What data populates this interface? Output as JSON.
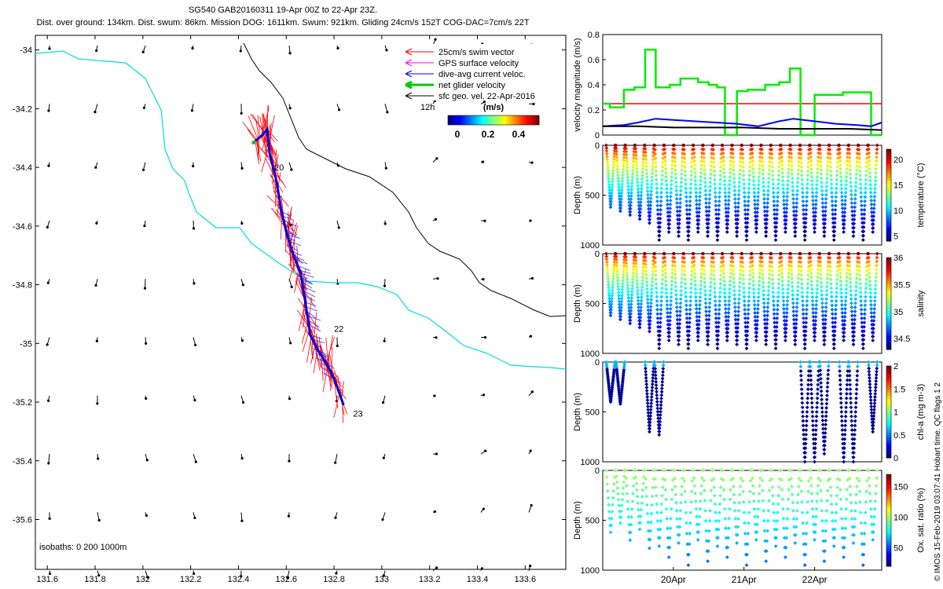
{
  "header": {
    "line1": "SG540 GAB20160311 19-Apr 00Z to 22-Apr 23Z.",
    "line2": "Dist. over ground: 134km. Dist. swum: 86km. Mission DOG: 1611km. Swum: 921km. Gliding 24cm/s 152T COG-DAC=7cm/s 22T"
  },
  "legend": {
    "items": [
      {
        "label": "25cm/s swim vector",
        "color": "#ff0000"
      },
      {
        "label": "GPS surface velocity",
        "color": "#ff00ff"
      },
      {
        "label": "dive-avg current veloc.",
        "color": "#0000ff"
      },
      {
        "label": "net glider velocity",
        "color": "#00cc00"
      },
      {
        "label": "sfc geo. vel. 22-Apr-2016",
        "color": "#000000"
      }
    ],
    "scale_label": "12h",
    "colorbar_unit": "(m/s)",
    "colorbar_ticks": [
      "0",
      "0.2",
      "0.4"
    ]
  },
  "isobaths_label": "isobaths: 0   200  1000m",
  "credit": "© IMOS 15-Feb-2019 03:07:41 Hobart time. QC flags 1  2",
  "chart_data": [
    {
      "type": "map",
      "x_ticks": [
        "131.6",
        "131.8",
        "132",
        "132.2",
        "132.4",
        "132.6",
        "132.8",
        "133",
        "133.2",
        "133.4",
        "133.6"
      ],
      "y_ticks": [
        "-34",
        "-34.2",
        "-34.4",
        "-34.6",
        "-34.8",
        "-35",
        "-35.2",
        "-35.4",
        "-35.6"
      ],
      "xlim": [
        131.55,
        133.77
      ],
      "ylim": [
        -35.77,
        -33.95
      ],
      "track_labels": [
        {
          "text": "20",
          "lon": 132.55,
          "lat": -34.41
        },
        {
          "text": "22",
          "lon": 132.8,
          "lat": -34.96
        },
        {
          "text": "23",
          "lon": 132.88,
          "lat": -35.25
        }
      ],
      "track": [
        [
          132.47,
          -34.31
        ],
        [
          132.5,
          -34.29
        ],
        [
          132.52,
          -34.27
        ],
        [
          132.53,
          -34.35
        ],
        [
          132.56,
          -34.45
        ],
        [
          132.58,
          -34.55
        ],
        [
          132.6,
          -34.62
        ],
        [
          132.63,
          -34.7
        ],
        [
          132.66,
          -34.76
        ],
        [
          132.68,
          -34.86
        ],
        [
          132.7,
          -34.97
        ],
        [
          132.73,
          -35.02
        ],
        [
          132.77,
          -35.07
        ],
        [
          132.8,
          -35.12
        ],
        [
          132.84,
          -35.21
        ]
      ]
    },
    {
      "type": "line",
      "ylabel": "velocity magnitude (m/s)",
      "ylim": [
        0,
        0.8
      ],
      "y_ticks": [
        "0",
        "0.2",
        "0.4",
        "0.6",
        "0.8"
      ],
      "red_level": 0.25,
      "series": [
        {
          "color": "#00ee00",
          "x": [
            19.0,
            19.1,
            19.1,
            19.3,
            19.3,
            19.45,
            19.45,
            19.6,
            19.6,
            19.75,
            19.75,
            19.95,
            19.95,
            20.1,
            20.1,
            20.35,
            20.35,
            20.5,
            20.5,
            20.62,
            20.62,
            20.73,
            20.73,
            20.9,
            20.9,
            21.05,
            21.05,
            21.3,
            21.3,
            21.5,
            21.5,
            21.65,
            21.65,
            21.8,
            21.8,
            22.0,
            22.0,
            22.4,
            22.4,
            22.8,
            22.8,
            22.95
          ],
          "y": [
            0.25,
            0.25,
            0.22,
            0.22,
            0.36,
            0.36,
            0.38,
            0.38,
            0.68,
            0.68,
            0.38,
            0.38,
            0.4,
            0.4,
            0.45,
            0.45,
            0.42,
            0.42,
            0.4,
            0.4,
            0.38,
            0.38,
            0.0,
            0.0,
            0.35,
            0.35,
            0.36,
            0.36,
            0.4,
            0.4,
            0.42,
            0.42,
            0.53,
            0.53,
            0.0,
            0.0,
            0.32,
            0.32,
            0.34,
            0.34,
            0.0,
            0.0
          ]
        },
        {
          "color": "#0000ff",
          "x": [
            19.0,
            19.3,
            19.5,
            19.75,
            20.0,
            20.3,
            20.6,
            20.9,
            21.2,
            21.5,
            21.7,
            22.0,
            22.3,
            22.6,
            22.8,
            22.95
          ],
          "y": [
            0.07,
            0.08,
            0.1,
            0.13,
            0.12,
            0.11,
            0.1,
            0.09,
            0.07,
            0.11,
            0.13,
            0.11,
            0.09,
            0.08,
            0.07,
            0.1
          ]
        },
        {
          "color": "#000000",
          "x": [
            19.0,
            19.5,
            20.0,
            20.5,
            21.0,
            21.5,
            22.0,
            22.5,
            22.95
          ],
          "y": [
            0.07,
            0.07,
            0.06,
            0.06,
            0.06,
            0.05,
            0.05,
            0.05,
            0.04
          ]
        }
      ]
    },
    {
      "type": "scatter",
      "ylabel": "Depth (m)",
      "clabel": "temperature (°C)",
      "cticks": [
        "5",
        "10",
        "15",
        "20"
      ],
      "clim": [
        4,
        22
      ],
      "dmax": 1000,
      "y_ticks": [
        "0",
        "500",
        "1000"
      ],
      "variant": "t"
    },
    {
      "type": "scatter",
      "ylabel": "Depth (m)",
      "clabel": "salinity",
      "cticks": [
        "34.5",
        "35",
        "35.5",
        "36"
      ],
      "clim": [
        34.3,
        36.0
      ],
      "dmax": 1000,
      "y_ticks": [
        "0",
        "500",
        "1000"
      ],
      "variant": "s"
    },
    {
      "type": "scatter",
      "ylabel": "Depth (m)",
      "clabel": "chl-a (mg m-3)",
      "cticks": [
        "0",
        "0.5",
        "1",
        "1.5",
        "2"
      ],
      "clim": [
        0,
        2
      ],
      "dmax": 1000,
      "y_ticks": [
        "0",
        "500",
        "1000"
      ],
      "variant": "c"
    },
    {
      "type": "scatter",
      "ylabel": "Depth (m)",
      "clabel": "Ox. sat. ratio (%)",
      "cticks": [
        "50",
        "100",
        "150"
      ],
      "clim": [
        20,
        170
      ],
      "dmax": 1000,
      "y_ticks": [
        "0",
        "500",
        "1000"
      ],
      "variant": "o",
      "x_ticks": [
        "20Apr",
        "21Apr",
        "22Apr"
      ],
      "x_tick_values": [
        20,
        21,
        22
      ],
      "xlim": [
        19.0,
        22.95
      ]
    }
  ]
}
